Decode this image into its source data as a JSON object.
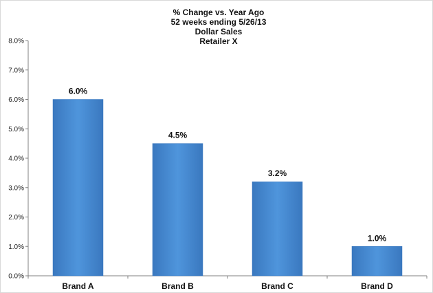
{
  "chart_data": {
    "type": "bar",
    "title_lines": [
      "% Change vs. Year Ago",
      "52 weeks ending 5/26/13",
      "Dollar Sales",
      "Retailer X"
    ],
    "categories": [
      "Brand A",
      "Brand B",
      "Brand C",
      "Brand D"
    ],
    "values": [
      6.0,
      4.5,
      3.2,
      1.0
    ],
    "data_labels": [
      "6.0%",
      "4.5%",
      "3.2%",
      "1.0%"
    ],
    "ylim": [
      0,
      8
    ],
    "yticks": [
      0,
      1,
      2,
      3,
      4,
      5,
      6,
      7,
      8
    ],
    "ytick_labels": [
      "0.0%",
      "1.0%",
      "2.0%",
      "3.0%",
      "4.0%",
      "5.0%",
      "6.0%",
      "7.0%",
      "8.0%"
    ],
    "xlabel": "",
    "ylabel": "",
    "grid": false,
    "legend": "none",
    "bar_color": "#4a8fd6",
    "bar_color_dark": "#3a78bf"
  }
}
